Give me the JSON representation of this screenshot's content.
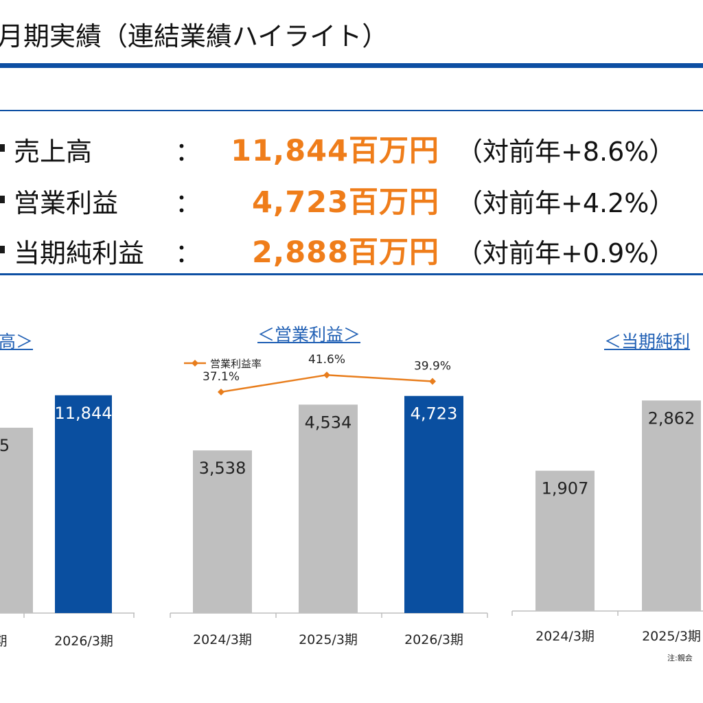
{
  "title": "月期実績（連結業績ハイライト）",
  "kpis": [
    {
      "label": "売上高",
      "colon": "：",
      "value": "11,844百万円",
      "change": "（対前年+8.6%）"
    },
    {
      "label": "営業利益",
      "colon": "：",
      "value": "4,723百万円",
      "change": "（対前年+4.2%）"
    },
    {
      "label": "当期純利益",
      "colon": "：",
      "value": "2,888百万円",
      "change": "（対前年+0.9%）"
    }
  ],
  "colors": {
    "accent": "#0d4fa3",
    "bar_prior": "#bfbfbf",
    "bar_current": "#0a4fa0",
    "highlight": "#ef7d1a",
    "line": "#e87d1c"
  },
  "note": "注:親会",
  "chart_data": [
    {
      "type": "bar",
      "title": "高＞",
      "categories": [
        "3期",
        "2026/3期"
      ],
      "values": [
        null,
        11844
      ],
      "value_labels": [
        "5",
        "11,844"
      ],
      "ylim": [
        0,
        14000
      ]
    },
    {
      "type": "bar",
      "title": "＜営業利益＞",
      "categories": [
        "2024/3期",
        "2025/3期",
        "2026/3期"
      ],
      "values": [
        3538,
        4534,
        4723
      ],
      "value_labels": [
        "3,538",
        "4,534",
        "4,723"
      ],
      "ylim": [
        0,
        5600
      ],
      "series_line": {
        "name": "営業利益率",
        "values": [
          37.1,
          41.6,
          39.9
        ],
        "labels": [
          "37.1%",
          "41.6%",
          "39.9%"
        ],
        "ylim": [
          0,
          50
        ]
      }
    },
    {
      "type": "bar",
      "title": "＜当期純利",
      "categories": [
        "2024/3期",
        "2025/3期"
      ],
      "values": [
        1907,
        2862
      ],
      "value_labels": [
        "1,907",
        "2,862"
      ],
      "ylim": [
        0,
        3500
      ]
    }
  ]
}
